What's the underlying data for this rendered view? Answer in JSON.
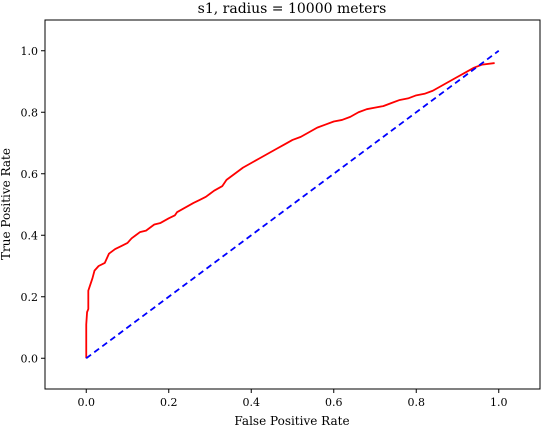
{
  "chart_data": {
    "type": "line",
    "title": "s1, radius = 10000 meters",
    "xlabel": "False Positive Rate",
    "ylabel": "True Positive Rate",
    "xlim": [
      -0.1,
      1.1
    ],
    "ylim": [
      -0.1,
      1.1
    ],
    "xticks": [
      0.0,
      0.2,
      0.4,
      0.6,
      0.8,
      1.0
    ],
    "yticks": [
      0.0,
      0.2,
      0.4,
      0.6,
      0.8,
      1.0
    ],
    "xtick_labels": [
      "0.0",
      "0.2",
      "0.4",
      "0.6",
      "0.8",
      "1.0"
    ],
    "ytick_labels": [
      "0.0",
      "0.2",
      "0.4",
      "0.6",
      "0.8",
      "1.0"
    ],
    "grid": false,
    "series": [
      {
        "style": "solid",
        "color": "#ff0000",
        "x": [
          0.0,
          0.0,
          0.0,
          0.002,
          0.005,
          0.005,
          0.01,
          0.015,
          0.02,
          0.03,
          0.045,
          0.055,
          0.07,
          0.085,
          0.1,
          0.11,
          0.12,
          0.13,
          0.145,
          0.16,
          0.165,
          0.18,
          0.2,
          0.215,
          0.22,
          0.24,
          0.26,
          0.275,
          0.29,
          0.3,
          0.31,
          0.33,
          0.34,
          0.36,
          0.38,
          0.4,
          0.42,
          0.44,
          0.46,
          0.48,
          0.5,
          0.52,
          0.54,
          0.56,
          0.58,
          0.6,
          0.62,
          0.64,
          0.66,
          0.68,
          0.7,
          0.72,
          0.74,
          0.76,
          0.78,
          0.8,
          0.82,
          0.84,
          0.86,
          0.88,
          0.9,
          0.92,
          0.94,
          0.96,
          0.99
        ],
        "y": [
          0.0,
          0.05,
          0.11,
          0.15,
          0.16,
          0.22,
          0.24,
          0.26,
          0.285,
          0.3,
          0.31,
          0.34,
          0.355,
          0.365,
          0.375,
          0.39,
          0.4,
          0.41,
          0.415,
          0.43,
          0.435,
          0.44,
          0.455,
          0.465,
          0.475,
          0.49,
          0.505,
          0.515,
          0.525,
          0.535,
          0.545,
          0.56,
          0.58,
          0.6,
          0.62,
          0.635,
          0.65,
          0.665,
          0.68,
          0.695,
          0.71,
          0.72,
          0.735,
          0.75,
          0.76,
          0.77,
          0.775,
          0.785,
          0.8,
          0.81,
          0.815,
          0.82,
          0.83,
          0.84,
          0.845,
          0.855,
          0.86,
          0.87,
          0.885,
          0.9,
          0.915,
          0.93,
          0.945,
          0.955,
          0.96
        ]
      },
      {
        "style": "dashed",
        "color": "#0000ff",
        "x": [
          0.0,
          1.0
        ],
        "y": [
          0.0,
          1.0
        ]
      }
    ]
  }
}
